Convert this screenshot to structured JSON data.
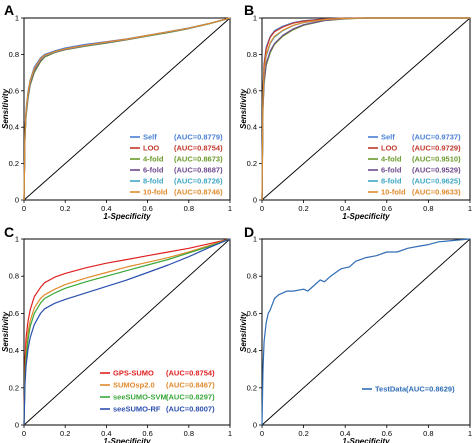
{
  "chart_data": [
    {
      "panel": "A",
      "type": "line",
      "xlabel": "1-Specificity",
      "ylabel": "Sensitivity",
      "xlim": [
        0,
        1
      ],
      "ylim": [
        0,
        1
      ],
      "xticks": [
        "0",
        "0.2",
        "0.4",
        "0.6",
        "0.8",
        "1"
      ],
      "yticks": [
        "0",
        "0.2",
        "0.4",
        "0.6",
        "0.8",
        "1"
      ],
      "diagonal": true,
      "legend_position": "bottom-right",
      "series": [
        {
          "name": "Self",
          "auc": "(AUC=0.8779)",
          "color": "#4a7fd4",
          "x": [
            0,
            0.005,
            0.01,
            0.02,
            0.03,
            0.05,
            0.08,
            0.1,
            0.15,
            0.2,
            0.3,
            0.4,
            0.5,
            0.6,
            0.7,
            0.8,
            0.9,
            0.95,
            1
          ],
          "y": [
            0,
            0.38,
            0.5,
            0.6,
            0.66,
            0.73,
            0.78,
            0.8,
            0.82,
            0.835,
            0.855,
            0.87,
            0.885,
            0.905,
            0.925,
            0.945,
            0.97,
            0.985,
            1
          ]
        },
        {
          "name": "LOO",
          "auc": "(AUC=0.8754)",
          "color": "#c0392b",
          "x": [
            0,
            0.005,
            0.01,
            0.02,
            0.03,
            0.05,
            0.08,
            0.1,
            0.15,
            0.2,
            0.3,
            0.4,
            0.5,
            0.6,
            0.7,
            0.8,
            0.9,
            0.95,
            1
          ],
          "y": [
            0,
            0.36,
            0.48,
            0.58,
            0.65,
            0.72,
            0.775,
            0.795,
            0.815,
            0.83,
            0.85,
            0.868,
            0.884,
            0.904,
            0.924,
            0.944,
            0.97,
            0.985,
            1
          ]
        },
        {
          "name": "4-fold",
          "auc": "(AUC=0.8673)",
          "color": "#6a9a2a",
          "x": [
            0,
            0.005,
            0.01,
            0.02,
            0.03,
            0.05,
            0.08,
            0.1,
            0.15,
            0.2,
            0.3,
            0.4,
            0.5,
            0.6,
            0.7,
            0.8,
            0.9,
            0.95,
            1
          ],
          "y": [
            0,
            0.34,
            0.46,
            0.56,
            0.63,
            0.7,
            0.76,
            0.785,
            0.81,
            0.825,
            0.845,
            0.862,
            0.88,
            0.9,
            0.92,
            0.942,
            0.968,
            0.984,
            1
          ]
        },
        {
          "name": "6-fold",
          "auc": "(AUC=0.8687)",
          "color": "#6f4a8e",
          "x": [
            0,
            0.005,
            0.01,
            0.02,
            0.03,
            0.05,
            0.08,
            0.1,
            0.15,
            0.2,
            0.3,
            0.4,
            0.5,
            0.6,
            0.7,
            0.8,
            0.9,
            0.95,
            1
          ],
          "y": [
            0,
            0.35,
            0.47,
            0.57,
            0.64,
            0.71,
            0.765,
            0.79,
            0.812,
            0.827,
            0.847,
            0.864,
            0.882,
            0.902,
            0.922,
            0.943,
            0.969,
            0.984,
            1
          ]
        },
        {
          "name": "8-fold",
          "auc": "(AUC=0.8726)",
          "color": "#3fa7c4",
          "x": [
            0,
            0.005,
            0.01,
            0.02,
            0.03,
            0.05,
            0.08,
            0.1,
            0.15,
            0.2,
            0.3,
            0.4,
            0.5,
            0.6,
            0.7,
            0.8,
            0.9,
            0.95,
            1
          ],
          "y": [
            0,
            0.36,
            0.48,
            0.585,
            0.65,
            0.72,
            0.772,
            0.793,
            0.814,
            0.829,
            0.849,
            0.866,
            0.883,
            0.903,
            0.923,
            0.944,
            0.97,
            0.985,
            1
          ]
        },
        {
          "name": "10-fold",
          "auc": "(AUC=0.8746)",
          "color": "#e08a2c",
          "x": [
            0,
            0.005,
            0.01,
            0.02,
            0.03,
            0.05,
            0.08,
            0.1,
            0.15,
            0.2,
            0.3,
            0.4,
            0.5,
            0.6,
            0.7,
            0.8,
            0.9,
            0.95,
            1
          ],
          "y": [
            0,
            0.37,
            0.49,
            0.59,
            0.655,
            0.722,
            0.774,
            0.795,
            0.815,
            0.83,
            0.85,
            0.867,
            0.884,
            0.904,
            0.924,
            0.944,
            0.97,
            0.985,
            1
          ]
        }
      ]
    },
    {
      "panel": "B",
      "type": "line",
      "xlabel": "1-Specificity",
      "ylabel": "Sensitivity",
      "xlim": [
        0,
        1
      ],
      "ylim": [
        0,
        1
      ],
      "xticks": [
        "0",
        "0.2",
        "0.4",
        "0.6",
        "0.8",
        "1"
      ],
      "yticks": [
        "0",
        "0.2",
        "0.4",
        "0.6",
        "0.8",
        "1"
      ],
      "diagonal": true,
      "legend_position": "bottom-right",
      "series": [
        {
          "name": "Self",
          "auc": "(AUC=0.9737)",
          "color": "#4a7fd4",
          "x": [
            0,
            0.005,
            0.01,
            0.02,
            0.04,
            0.06,
            0.1,
            0.15,
            0.2,
            0.3,
            0.4,
            0.5,
            0.7,
            1
          ],
          "y": [
            0,
            0.6,
            0.75,
            0.84,
            0.9,
            0.93,
            0.955,
            0.975,
            0.985,
            0.995,
            1,
            1,
            1,
            1
          ]
        },
        {
          "name": "LOO",
          "auc": "(AUC=0.9729)",
          "color": "#c0392b",
          "x": [
            0,
            0.005,
            0.01,
            0.02,
            0.04,
            0.06,
            0.1,
            0.15,
            0.2,
            0.3,
            0.4,
            0.5,
            0.7,
            1
          ],
          "y": [
            0,
            0.58,
            0.74,
            0.83,
            0.895,
            0.925,
            0.95,
            0.972,
            0.983,
            0.994,
            1,
            1,
            1,
            1
          ]
        },
        {
          "name": "4-fold",
          "auc": "(AUC=0.9510)",
          "color": "#6a9a2a",
          "x": [
            0,
            0.005,
            0.01,
            0.02,
            0.04,
            0.06,
            0.1,
            0.15,
            0.2,
            0.3,
            0.4,
            0.5,
            0.7,
            1
          ],
          "y": [
            0,
            0.5,
            0.64,
            0.74,
            0.81,
            0.855,
            0.9,
            0.935,
            0.96,
            0.985,
            0.995,
            1,
            1,
            1
          ]
        },
        {
          "name": "6-fold",
          "auc": "(AUC=0.9529)",
          "color": "#6f4a8e",
          "x": [
            0,
            0.005,
            0.01,
            0.02,
            0.04,
            0.06,
            0.1,
            0.15,
            0.2,
            0.3,
            0.4,
            0.5,
            0.7,
            1
          ],
          "y": [
            0,
            0.51,
            0.65,
            0.75,
            0.82,
            0.86,
            0.905,
            0.94,
            0.963,
            0.986,
            0.996,
            1,
            1,
            1
          ]
        },
        {
          "name": "8-fold",
          "auc": "(AUC=0.9625)",
          "color": "#3fa7c4",
          "x": [
            0,
            0.005,
            0.01,
            0.02,
            0.04,
            0.06,
            0.1,
            0.15,
            0.2,
            0.3,
            0.4,
            0.5,
            0.7,
            1
          ],
          "y": [
            0,
            0.55,
            0.7,
            0.79,
            0.86,
            0.895,
            0.93,
            0.958,
            0.975,
            0.99,
            0.998,
            1,
            1,
            1
          ]
        },
        {
          "name": "10-fold",
          "auc": "(AUC=0.9633)",
          "color": "#e08a2c",
          "x": [
            0,
            0.005,
            0.01,
            0.02,
            0.04,
            0.06,
            0.1,
            0.15,
            0.2,
            0.3,
            0.4,
            0.5,
            0.7,
            1
          ],
          "y": [
            0,
            0.56,
            0.71,
            0.8,
            0.865,
            0.9,
            0.933,
            0.96,
            0.976,
            0.991,
            0.998,
            1,
            1,
            1
          ]
        }
      ]
    },
    {
      "panel": "C",
      "type": "line",
      "xlabel": "1-Specificity",
      "ylabel": "Sensitivity",
      "xlim": [
        0,
        1
      ],
      "ylim": [
        0,
        1
      ],
      "xticks": [
        "0",
        "0.2",
        "0.4",
        "0.6",
        "0.8",
        "1"
      ],
      "yticks": [
        "0",
        "0.2",
        "0.4",
        "0.6",
        "0.8",
        "1"
      ],
      "diagonal": true,
      "legend_position": "bottom-right",
      "series": [
        {
          "name": "GPS-SUMO",
          "auc": "(AUC=0.8754)",
          "color": "#e02020",
          "x": [
            0,
            0.005,
            0.01,
            0.02,
            0.03,
            0.05,
            0.08,
            0.1,
            0.15,
            0.2,
            0.3,
            0.4,
            0.5,
            0.6,
            0.7,
            0.8,
            0.9,
            1
          ],
          "y": [
            0,
            0.35,
            0.47,
            0.56,
            0.62,
            0.69,
            0.74,
            0.765,
            0.795,
            0.815,
            0.845,
            0.87,
            0.89,
            0.91,
            0.93,
            0.95,
            0.975,
            1
          ]
        },
        {
          "name": "SUMOsp2.0",
          "auc": "(AUC=0.8467)",
          "color": "#e08a2c",
          "x": [
            0,
            0.005,
            0.01,
            0.02,
            0.03,
            0.05,
            0.08,
            0.1,
            0.15,
            0.2,
            0.3,
            0.4,
            0.5,
            0.6,
            0.7,
            0.8,
            0.9,
            1
          ],
          "y": [
            0,
            0.28,
            0.4,
            0.5,
            0.56,
            0.63,
            0.68,
            0.7,
            0.73,
            0.755,
            0.79,
            0.82,
            0.85,
            0.875,
            0.9,
            0.93,
            0.965,
            1
          ]
        },
        {
          "name": "seeSUMO-SVM",
          "auc": "(AUC=0.8297)",
          "color": "#3aa83a",
          "x": [
            0,
            0.005,
            0.01,
            0.02,
            0.03,
            0.05,
            0.08,
            0.1,
            0.15,
            0.2,
            0.3,
            0.4,
            0.5,
            0.6,
            0.7,
            0.8,
            0.9,
            1
          ],
          "y": [
            0,
            0.25,
            0.36,
            0.46,
            0.53,
            0.6,
            0.655,
            0.68,
            0.71,
            0.735,
            0.77,
            0.8,
            0.83,
            0.86,
            0.89,
            0.925,
            0.96,
            1
          ]
        },
        {
          "name": "seeSUMO-RF",
          "auc": "(AUC=0.8007)",
          "color": "#2b4fb0",
          "x": [
            0,
            0.005,
            0.01,
            0.02,
            0.03,
            0.05,
            0.08,
            0.1,
            0.15,
            0.2,
            0.3,
            0.4,
            0.5,
            0.6,
            0.7,
            0.8,
            0.9,
            1
          ],
          "y": [
            0,
            0.22,
            0.32,
            0.41,
            0.47,
            0.54,
            0.6,
            0.625,
            0.655,
            0.675,
            0.71,
            0.745,
            0.78,
            0.82,
            0.86,
            0.905,
            0.955,
            1
          ]
        }
      ]
    },
    {
      "panel": "D",
      "type": "line",
      "xlabel": "1-Specificity",
      "ylabel": "Sensitivity",
      "xlim": [
        0,
        1
      ],
      "ylim": [
        0,
        1
      ],
      "xticks": [
        "0",
        "0.2",
        "0.4",
        "0.6",
        "0.8",
        "1"
      ],
      "yticks": [
        "0",
        "0.2",
        "0.4",
        "0.6",
        "0.8",
        "1"
      ],
      "diagonal": true,
      "legend_position": "bottom-right",
      "series": [
        {
          "name": "TestData",
          "auc": "(AUC=0.8629)",
          "color": "#2f6db5",
          "x": [
            0,
            0.005,
            0.01,
            0.02,
            0.03,
            0.04,
            0.05,
            0.06,
            0.08,
            0.1,
            0.12,
            0.15,
            0.2,
            0.22,
            0.25,
            0.28,
            0.3,
            0.33,
            0.38,
            0.42,
            0.45,
            0.5,
            0.55,
            0.6,
            0.65,
            0.7,
            0.75,
            0.8,
            0.85,
            0.9,
            0.95,
            1
          ],
          "y": [
            0,
            0.3,
            0.45,
            0.55,
            0.6,
            0.62,
            0.65,
            0.68,
            0.7,
            0.71,
            0.72,
            0.72,
            0.73,
            0.72,
            0.75,
            0.78,
            0.77,
            0.8,
            0.84,
            0.85,
            0.88,
            0.9,
            0.91,
            0.93,
            0.93,
            0.95,
            0.96,
            0.97,
            0.985,
            0.99,
            0.995,
            1
          ]
        }
      ]
    }
  ]
}
